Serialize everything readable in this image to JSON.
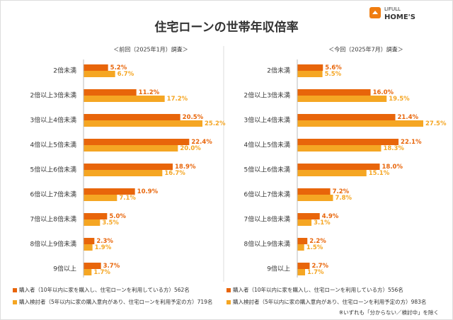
{
  "header": {
    "title": "住宅ローンの世帯年収倍率",
    "logo": [
      "LIFULL",
      "HOME'S"
    ]
  },
  "footnote": "※いずれも「分からない／検討中」を除く",
  "chart_data": [
    {
      "type": "bar",
      "orientation": "horizontal",
      "subtitle": "＜前回（2025年1月）調査＞",
      "categories": [
        "2倍未満",
        "2倍以上3倍未満",
        "3倍以上4倍未満",
        "4倍以上5倍未満",
        "5倍以上6倍未満",
        "6倍以上7倍未満",
        "7倍以上8倍未満",
        "8倍以上9倍未満",
        "9倍以上"
      ],
      "series": [
        {
          "name": "購入者（10年以内に家を購入し、住宅ローンを利用している方）562名",
          "color": "#e8650a",
          "values": [
            5.2,
            11.2,
            20.5,
            22.4,
            18.9,
            10.9,
            5.0,
            2.3,
            3.7
          ],
          "value_labels": [
            "5.2%",
            "11.2%",
            "20.5%",
            "22.4%",
            "18.9%",
            "10.9%",
            "5.0%",
            "2.3%",
            "3.7%"
          ]
        },
        {
          "name": "購入検討者（5年以内に家の購入意向があり、住宅ローンを利用予定の方）719名",
          "color": "#f5a623",
          "values": [
            6.7,
            17.2,
            25.2,
            20.0,
            16.7,
            7.1,
            3.5,
            1.9,
            1.7
          ],
          "value_labels": [
            "6.7%",
            "17.2%",
            "25.2%",
            "20.0%",
            "16.7%",
            "7.1%",
            "3.5%",
            "1.9%",
            "1.7%"
          ]
        }
      ]
    },
    {
      "type": "bar",
      "orientation": "horizontal",
      "subtitle": "＜今回（2025年7月）調査＞",
      "categories": [
        "2倍未満",
        "2倍以上3倍未満",
        "3倍以上4倍未満",
        "4倍以上5倍未満",
        "5倍以上6倍未満",
        "6倍以上7倍未満",
        "7倍以上8倍未満",
        "8倍以上9倍未満",
        "9倍以上"
      ],
      "series": [
        {
          "name": "購入者（10年以内に家を購入し、住宅ローンを利用している方）556名",
          "color": "#e8650a",
          "values": [
            5.6,
            16.0,
            21.4,
            22.1,
            18.0,
            7.2,
            4.9,
            2.2,
            2.7
          ],
          "value_labels": [
            "5.6%",
            "16.0%",
            "21.4%",
            "22.1%",
            "18.0%",
            "7.2%",
            "4.9%",
            "2.2%",
            "2.7%"
          ]
        },
        {
          "name": "購入検討者（5年以内に家の購入意向があり、住宅ローンを利用予定の方）983名",
          "color": "#f5a623",
          "values": [
            5.5,
            19.5,
            27.5,
            18.3,
            15.1,
            7.8,
            3.1,
            1.5,
            1.7
          ],
          "value_labels": [
            "5.5%",
            "19.5%",
            "27.5%",
            "18.3%",
            "15.1%",
            "7.8%",
            "3.1%",
            "1.5%",
            "1.7%"
          ]
        }
      ]
    }
  ]
}
